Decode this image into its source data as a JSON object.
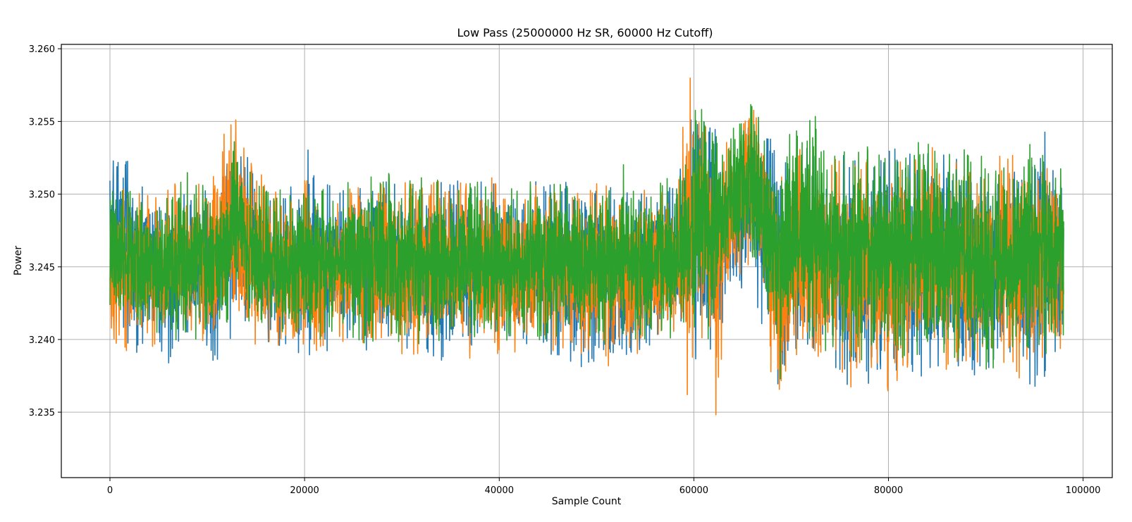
{
  "chart_data": {
    "type": "line",
    "title": "Low Pass (25000000 Hz SR, 60000 Hz Cutoff)",
    "xlabel": "Sample Count",
    "ylabel": "Power",
    "xlim": [
      -5000,
      103000
    ],
    "ylim": [
      3.2305,
      3.2603
    ],
    "xticks": [
      0,
      20000,
      40000,
      60000,
      80000,
      100000
    ],
    "xtick_labels": [
      "0",
      "20000",
      "40000",
      "60000",
      "80000",
      "100000"
    ],
    "yticks": [
      3.235,
      3.24,
      3.245,
      3.25,
      3.255,
      3.26
    ],
    "ytick_labels": [
      "3.235",
      "3.240",
      "3.245",
      "3.250",
      "3.255",
      "3.260"
    ],
    "grid": true,
    "legend": "none",
    "x_range": [
      0,
      98000
    ],
    "series": [
      {
        "color": "#1f77b4",
        "x": [
          0,
          2000,
          4000,
          6000,
          8000,
          10000,
          10800,
          12000,
          13000,
          14000,
          16000,
          18000,
          20000,
          22000,
          24000,
          26000,
          28000,
          30000,
          32000,
          34000,
          36000,
          38000,
          40000,
          42000,
          44000,
          46000,
          48000,
          50000,
          52000,
          54000,
          56000,
          58000,
          59500,
          60000,
          61000,
          62000,
          63000,
          64000,
          65000,
          66000,
          67000,
          68200,
          69000,
          70000,
          72000,
          74000,
          76000,
          78000,
          80000,
          82000,
          84000,
          86000,
          88000,
          90000,
          92000,
          94000,
          96000,
          98000
        ],
        "max": [
          3.2526,
          3.2523,
          3.2505,
          3.2504,
          3.2514,
          3.2515,
          3.25,
          3.2522,
          3.2535,
          3.2528,
          3.2508,
          3.25,
          3.2535,
          3.2515,
          3.2508,
          3.252,
          3.251,
          3.2505,
          3.251,
          3.2508,
          3.251,
          3.251,
          3.2509,
          3.2507,
          3.2514,
          3.2515,
          3.2512,
          3.251,
          3.2505,
          3.2505,
          3.251,
          3.251,
          3.255,
          3.256,
          3.2556,
          3.2547,
          3.254,
          3.254,
          3.254,
          3.257,
          3.2528,
          3.2575,
          3.2525,
          3.2525,
          3.2533,
          3.2527,
          3.2529,
          3.2525,
          3.2532,
          3.2532,
          3.2532,
          3.253,
          3.253,
          3.2524,
          3.252,
          3.2535,
          3.2544,
          3.252
        ],
        "min": [
          3.2413,
          3.239,
          3.2392,
          3.2382,
          3.2388,
          3.2388,
          3.2368,
          3.2398,
          3.2395,
          3.2398,
          3.2395,
          3.2395,
          3.238,
          3.2392,
          3.2393,
          3.2392,
          3.2395,
          3.239,
          3.2392,
          3.238,
          3.239,
          3.2388,
          3.2395,
          3.239,
          3.2392,
          3.2385,
          3.2378,
          3.2382,
          3.2382,
          3.2383,
          3.2397,
          3.2398,
          3.239,
          3.2382,
          3.2395,
          3.2368,
          3.2408,
          3.2428,
          3.2435,
          3.2442,
          3.2398,
          3.2395,
          3.2345,
          3.2382,
          3.239,
          3.2375,
          3.2365,
          3.237,
          3.2385,
          3.2368,
          3.2378,
          3.238,
          3.2365,
          3.2368,
          3.2372,
          3.2362,
          3.2373,
          3.2385
        ]
      },
      {
        "color": "#ff7f0e",
        "x": [
          0,
          1000,
          2000,
          4000,
          6000,
          8000,
          10000,
          12000,
          13000,
          14000,
          16000,
          18000,
          20000,
          22000,
          24000,
          26000,
          28000,
          30000,
          32000,
          34000,
          36000,
          38000,
          40000,
          42000,
          44000,
          46000,
          48000,
          50000,
          52000,
          54000,
          56000,
          58000,
          59500,
          60000,
          61000,
          62000,
          62300,
          63000,
          64000,
          65000,
          66000,
          67000,
          68000,
          68800,
          70000,
          72000,
          74000,
          76000,
          78000,
          80000,
          82000,
          84000,
          86000,
          88000,
          90000,
          92000,
          93300,
          94000,
          96000,
          98000
        ],
        "max": [
          3.2502,
          3.2508,
          3.2505,
          3.2505,
          3.2508,
          3.251,
          3.2518,
          3.2545,
          3.2554,
          3.2525,
          3.251,
          3.2505,
          3.2512,
          3.2508,
          3.2508,
          3.251,
          3.2508,
          3.2508,
          3.251,
          3.251,
          3.2508,
          3.251,
          3.2512,
          3.25,
          3.251,
          3.2505,
          3.2505,
          3.2508,
          3.2505,
          3.2505,
          3.2505,
          3.25,
          3.259,
          3.2575,
          3.2556,
          3.255,
          3.253,
          3.2547,
          3.254,
          3.2567,
          3.258,
          3.255,
          3.253,
          3.252,
          3.254,
          3.252,
          3.253,
          3.2534,
          3.2535,
          3.2535,
          3.2525,
          3.2535,
          3.2525,
          3.2525,
          3.252,
          3.2535,
          3.253,
          3.2536,
          3.2538,
          3.252
        ],
        "min": [
          3.2405,
          3.2385,
          3.239,
          3.2392,
          3.2395,
          3.2395,
          3.239,
          3.2395,
          3.2402,
          3.2395,
          3.2395,
          3.2395,
          3.2392,
          3.2388,
          3.2395,
          3.2395,
          3.2392,
          3.2385,
          3.2388,
          3.2385,
          3.2388,
          3.2385,
          3.239,
          3.239,
          3.2392,
          3.239,
          3.239,
          3.2385,
          3.238,
          3.2383,
          3.2395,
          3.2398,
          3.2355,
          3.239,
          3.24,
          3.2395,
          3.2325,
          3.2405,
          3.243,
          3.245,
          3.245,
          3.241,
          3.2375,
          3.2332,
          3.2365,
          3.2385,
          3.237,
          3.2365,
          3.238,
          3.236,
          3.238,
          3.238,
          3.2375,
          3.237,
          3.2375,
          3.2375,
          3.2348,
          3.2365,
          3.237,
          3.238
        ]
      },
      {
        "color": "#2ca02c",
        "x": [
          0,
          2000,
          4000,
          6000,
          7500,
          10000,
          12000,
          13000,
          14000,
          16000,
          18000,
          20500,
          22000,
          24000,
          26000,
          28000,
          30000,
          32000,
          34000,
          36000,
          37000,
          38000,
          40000,
          42000,
          44000,
          46000,
          48000,
          50000,
          52000,
          53000,
          54000,
          56000,
          58000,
          59500,
          60000,
          61000,
          62000,
          63000,
          64000,
          65000,
          66000,
          67000,
          68000,
          69000,
          70000,
          72000,
          74000,
          76000,
          78000,
          80000,
          82000,
          84000,
          86000,
          87000,
          88000,
          90000,
          92000,
          94000,
          96000,
          98000
        ],
        "max": [
          3.2505,
          3.2508,
          3.2505,
          3.2505,
          3.2518,
          3.2505,
          3.251,
          3.2553,
          3.252,
          3.2505,
          3.2505,
          3.2528,
          3.2515,
          3.251,
          3.2522,
          3.2518,
          3.2508,
          3.2512,
          3.2512,
          3.2508,
          3.2523,
          3.251,
          3.251,
          3.251,
          3.2515,
          3.2512,
          3.251,
          3.251,
          3.2505,
          3.2528,
          3.251,
          3.2512,
          3.251,
          3.2545,
          3.2568,
          3.2578,
          3.2555,
          3.255,
          3.2555,
          3.255,
          3.2565,
          3.255,
          3.2535,
          3.254,
          3.255,
          3.2565,
          3.254,
          3.2535,
          3.254,
          3.254,
          3.2535,
          3.254,
          3.2535,
          3.2545,
          3.253,
          3.253,
          3.2525,
          3.2535,
          3.2532,
          3.2525
        ],
        "min": [
          3.242,
          3.24,
          3.24,
          3.2395,
          3.2398,
          3.24,
          3.2405,
          3.244,
          3.2405,
          3.24,
          3.2395,
          3.239,
          3.24,
          3.24,
          3.2395,
          3.2398,
          3.2398,
          3.2395,
          3.2395,
          3.2395,
          3.24,
          3.239,
          3.2398,
          3.2395,
          3.2398,
          3.24,
          3.2395,
          3.2398,
          3.2395,
          3.2395,
          3.2398,
          3.24,
          3.24,
          3.2405,
          3.2395,
          3.2405,
          3.238,
          3.242,
          3.244,
          3.245,
          3.245,
          3.242,
          3.24,
          3.237,
          3.2395,
          3.2395,
          3.239,
          3.2385,
          3.2385,
          3.2388,
          3.2385,
          3.239,
          3.2388,
          3.2385,
          3.238,
          3.236,
          3.2385,
          3.2385,
          3.2385,
          3.2395
        ]
      }
    ]
  }
}
